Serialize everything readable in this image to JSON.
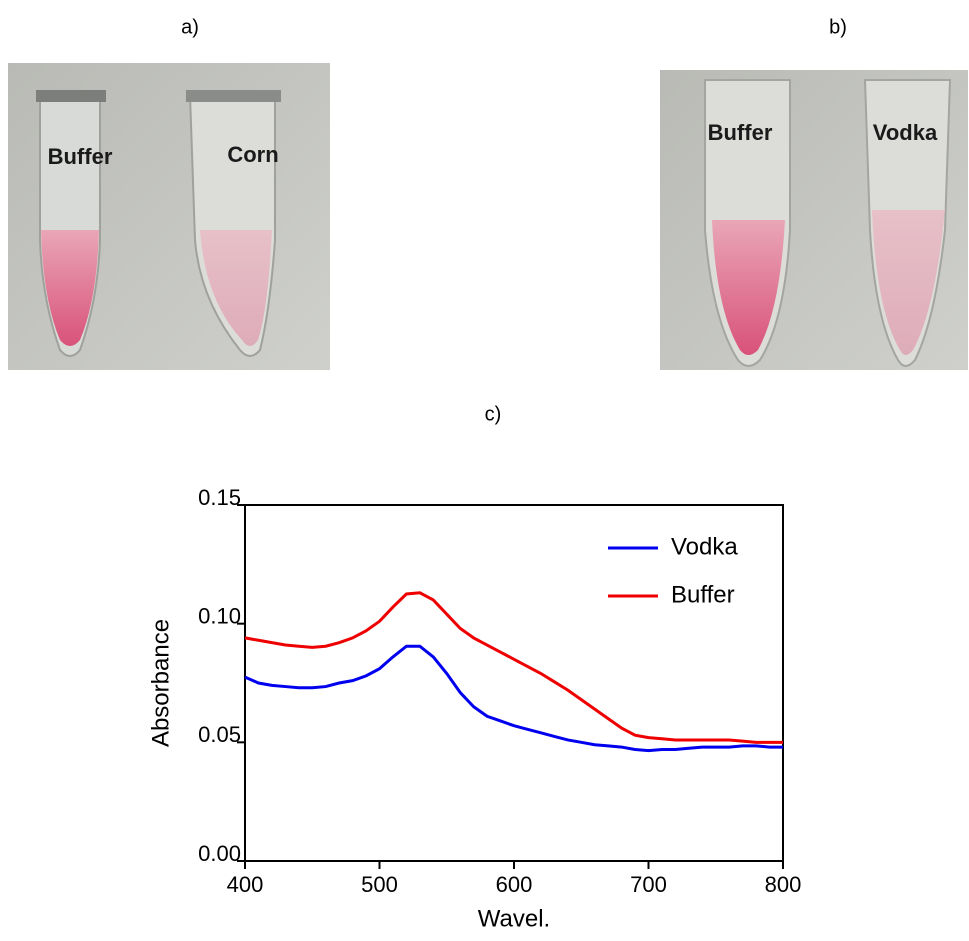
{
  "figure": {
    "panel_labels": [
      "a)",
      "b)",
      "c)"
    ],
    "photo_a_labels": [
      "Buffer",
      "Corn"
    ],
    "photo_b_labels": [
      "Buffer",
      "Vodka"
    ]
  },
  "chart_data": {
    "type": "line",
    "xlabel": "Wavel.",
    "ylabel": "Absorbance",
    "x": [
      400,
      410,
      420,
      430,
      440,
      450,
      460,
      470,
      480,
      490,
      500,
      510,
      520,
      530,
      540,
      550,
      560,
      570,
      580,
      590,
      600,
      610,
      620,
      630,
      640,
      650,
      660,
      670,
      680,
      690,
      700,
      710,
      720,
      730,
      740,
      750,
      760,
      770,
      780,
      790,
      800
    ],
    "series": [
      {
        "name": "Vodka",
        "color": "#0000ee",
        "values": [
          0.0775,
          0.075,
          0.074,
          0.0735,
          0.073,
          0.073,
          0.0735,
          0.075,
          0.076,
          0.078,
          0.081,
          0.086,
          0.0905,
          0.0905,
          0.086,
          0.079,
          0.071,
          0.065,
          0.061,
          0.059,
          0.057,
          0.0555,
          0.054,
          0.0525,
          0.051,
          0.05,
          0.049,
          0.0485,
          0.048,
          0.047,
          0.0465,
          0.047,
          0.047,
          0.0475,
          0.048,
          0.048,
          0.048,
          0.0485,
          0.0485,
          0.048,
          0.048
        ]
      },
      {
        "name": "Buffer",
        "color": "#ee0000",
        "values": [
          0.094,
          0.093,
          0.092,
          0.091,
          0.0905,
          0.09,
          0.0905,
          0.092,
          0.094,
          0.097,
          0.101,
          0.107,
          0.1125,
          0.113,
          0.11,
          0.104,
          0.098,
          0.094,
          0.091,
          0.088,
          0.085,
          0.082,
          0.079,
          0.0755,
          0.072,
          0.068,
          0.064,
          0.06,
          0.056,
          0.053,
          0.052,
          0.0515,
          0.051,
          0.051,
          0.051,
          0.051,
          0.051,
          0.0505,
          0.05,
          0.05,
          0.05
        ]
      }
    ],
    "xlim": [
      400,
      800
    ],
    "xticks": [
      400,
      500,
      600,
      700,
      800
    ],
    "ylim": [
      0,
      0.15
    ],
    "yticks": [
      {
        "value": 0,
        "label": "0.00"
      },
      {
        "value": 0.05,
        "label": "0.05"
      },
      {
        "value": 0.1,
        "label": "0.10"
      },
      {
        "value": 0.15,
        "label": "0.15"
      }
    ],
    "legend": "upper right"
  }
}
